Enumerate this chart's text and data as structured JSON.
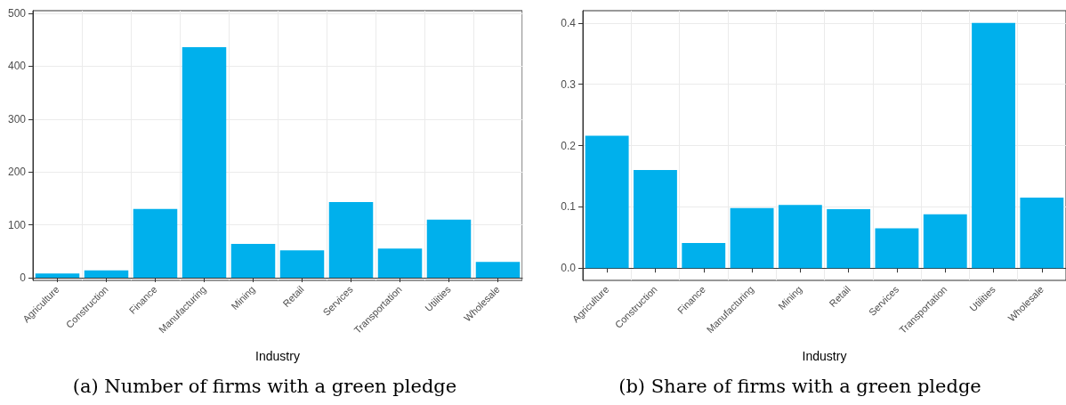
{
  "chart_data": [
    {
      "type": "bar",
      "title": "(a) Number of firms with a green pledge",
      "xlabel": "Industry",
      "categories": [
        "Agriculture",
        "Construction",
        "Finance",
        "Manufacturing",
        "Mining",
        "Retail",
        "Services",
        "Transportation",
        "Utilities",
        "Wholesale"
      ],
      "values": [
        8,
        14,
        130,
        436,
        64,
        52,
        143,
        55,
        110,
        30
      ],
      "color": "#00b0ec",
      "ylim": [
        -5,
        505
      ],
      "yticks": [
        0,
        100,
        200,
        300,
        400,
        500
      ],
      "grid": true
    },
    {
      "type": "bar",
      "title": "(b) Share of firms with a green pledge",
      "xlabel": "Industry",
      "categories": [
        "Agriculture",
        "Construction",
        "Finance",
        "Manufacturing",
        "Mining",
        "Retail",
        "Services",
        "Transportation",
        "Utilities",
        "Wholesale"
      ],
      "values": [
        0.216,
        0.16,
        0.041,
        0.098,
        0.103,
        0.096,
        0.065,
        0.088,
        0.4,
        0.115
      ],
      "color": "#00b0ec",
      "ylim": [
        -0.02,
        0.42
      ],
      "yticks": [
        {
          "value": 0,
          "label": "0.0"
        },
        0.1,
        0.2,
        0.3,
        0.4
      ],
      "grid": true
    }
  ]
}
